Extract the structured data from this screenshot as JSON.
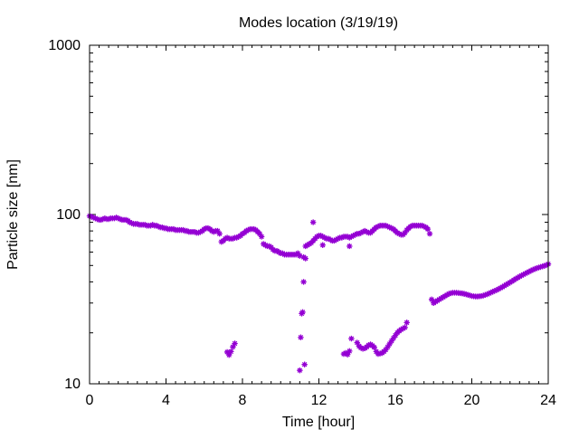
{
  "chart_data": {
    "type": "scatter",
    "title": "Modes location (3/19/19)",
    "xlabel": "Time [hour]",
    "ylabel": "Particle size [nm]",
    "xlim": [
      0,
      24
    ],
    "ylim": [
      10,
      1000
    ],
    "yscale": "log",
    "x_ticks": [
      0,
      4,
      8,
      12,
      16,
      20,
      24
    ],
    "x_tick_labels": [
      "0",
      "4",
      "8",
      "12",
      "16",
      "20",
      "24"
    ],
    "y_ticks": [
      10,
      100,
      1000
    ],
    "y_tick_labels": [
      "10",
      "100",
      "1000"
    ],
    "grid": false,
    "legend": "none",
    "marker": "asterisk",
    "color": "#9400d3",
    "series": [
      {
        "points": [
          [
            0.0,
            98
          ],
          [
            0.1,
            97
          ],
          [
            0.2,
            96
          ],
          [
            0.3,
            95
          ],
          [
            0.4,
            94
          ],
          [
            0.5,
            93
          ],
          [
            0.6,
            93
          ],
          [
            0.7,
            94
          ],
          [
            0.8,
            95
          ],
          [
            0.9,
            94
          ],
          [
            1.0,
            94
          ],
          [
            1.1,
            95
          ],
          [
            1.2,
            95
          ],
          [
            1.3,
            95
          ],
          [
            1.4,
            96
          ],
          [
            1.5,
            95
          ],
          [
            1.6,
            94
          ],
          [
            1.7,
            93
          ],
          [
            1.8,
            93
          ],
          [
            1.9,
            93
          ],
          [
            2.0,
            92
          ],
          [
            2.1,
            90
          ],
          [
            2.2,
            89
          ],
          [
            2.3,
            88
          ],
          [
            2.4,
            88
          ],
          [
            2.5,
            88
          ],
          [
            2.6,
            87
          ],
          [
            2.7,
            87
          ],
          [
            2.8,
            87
          ],
          [
            2.9,
            87
          ],
          [
            3.0,
            86
          ],
          [
            3.1,
            86
          ],
          [
            3.2,
            86
          ],
          [
            3.3,
            87
          ],
          [
            3.4,
            86
          ],
          [
            3.5,
            86
          ],
          [
            3.6,
            85
          ],
          [
            3.7,
            84
          ],
          [
            3.8,
            84
          ],
          [
            3.9,
            83
          ],
          [
            4.0,
            83
          ],
          [
            4.1,
            82
          ],
          [
            4.2,
            82
          ],
          [
            4.3,
            82
          ],
          [
            4.4,
            82
          ],
          [
            4.5,
            81
          ],
          [
            4.6,
            81
          ],
          [
            4.7,
            81
          ],
          [
            4.8,
            81
          ],
          [
            4.9,
            81
          ],
          [
            5.0,
            80
          ],
          [
            5.1,
            80
          ],
          [
            5.2,
            79
          ],
          [
            5.3,
            79
          ],
          [
            5.4,
            79
          ],
          [
            5.5,
            79
          ],
          [
            5.6,
            78
          ],
          [
            5.7,
            78
          ],
          [
            5.8,
            79
          ],
          [
            5.9,
            80
          ],
          [
            6.0,
            82
          ],
          [
            6.1,
            83
          ],
          [
            6.2,
            83
          ],
          [
            6.3,
            82
          ],
          [
            6.4,
            80
          ],
          [
            6.5,
            79
          ],
          [
            6.6,
            80
          ],
          [
            6.7,
            80
          ],
          [
            6.8,
            77
          ],
          [
            6.9,
            69
          ],
          [
            7.0,
            70
          ],
          [
            7.1,
            72
          ],
          [
            7.2,
            73
          ],
          [
            7.3,
            72
          ],
          [
            7.4,
            72
          ],
          [
            7.5,
            72
          ],
          [
            7.6,
            73
          ],
          [
            7.7,
            73
          ],
          [
            7.8,
            74
          ],
          [
            7.9,
            75
          ],
          [
            8.0,
            77
          ],
          [
            8.1,
            78
          ],
          [
            8.2,
            80
          ],
          [
            8.3,
            81
          ],
          [
            8.4,
            82
          ],
          [
            8.5,
            82
          ],
          [
            8.6,
            82
          ],
          [
            8.7,
            81
          ],
          [
            8.8,
            79
          ],
          [
            8.9,
            77
          ],
          [
            9.0,
            74
          ],
          [
            9.1,
            67
          ],
          [
            9.2,
            66
          ],
          [
            9.3,
            65
          ],
          [
            9.4,
            65
          ],
          [
            9.5,
            64
          ],
          [
            9.6,
            62
          ],
          [
            9.7,
            61
          ],
          [
            9.8,
            61
          ],
          [
            9.9,
            60
          ],
          [
            10.0,
            59
          ],
          [
            10.1,
            59
          ],
          [
            10.2,
            58
          ],
          [
            10.3,
            58
          ],
          [
            10.4,
            58
          ],
          [
            10.5,
            58
          ],
          [
            10.6,
            58
          ],
          [
            10.7,
            58
          ],
          [
            10.8,
            58
          ],
          [
            10.9,
            59
          ],
          [
            11.0,
            57
          ],
          [
            11.2,
            56
          ],
          [
            11.3,
            65
          ],
          [
            11.4,
            66
          ],
          [
            11.5,
            67
          ],
          [
            11.6,
            68
          ],
          [
            11.7,
            70
          ],
          [
            11.8,
            72
          ],
          [
            11.9,
            74
          ],
          [
            12.0,
            75
          ],
          [
            12.1,
            75
          ],
          [
            12.2,
            74
          ],
          [
            12.3,
            73
          ],
          [
            12.4,
            72
          ],
          [
            12.5,
            72
          ],
          [
            12.6,
            71
          ],
          [
            12.7,
            70
          ],
          [
            12.8,
            70
          ],
          [
            12.9,
            71
          ],
          [
            13.0,
            72
          ],
          [
            13.1,
            73
          ],
          [
            13.2,
            73
          ],
          [
            13.3,
            74
          ],
          [
            13.4,
            74
          ],
          [
            13.5,
            74
          ],
          [
            13.6,
            73
          ],
          [
            13.7,
            74
          ],
          [
            13.8,
            75
          ],
          [
            13.9,
            76
          ],
          [
            14.0,
            77
          ],
          [
            14.1,
            77
          ],
          [
            14.2,
            78
          ],
          [
            14.3,
            79
          ],
          [
            14.4,
            80
          ],
          [
            14.5,
            79
          ],
          [
            14.6,
            78
          ],
          [
            14.7,
            78
          ],
          [
            14.8,
            80
          ],
          [
            14.9,
            82
          ],
          [
            15.0,
            84
          ],
          [
            15.1,
            85
          ],
          [
            15.2,
            86
          ],
          [
            15.3,
            86
          ],
          [
            15.4,
            86
          ],
          [
            15.5,
            86
          ],
          [
            15.6,
            85
          ],
          [
            15.7,
            84
          ],
          [
            15.8,
            83
          ],
          [
            15.9,
            82
          ],
          [
            16.0,
            80
          ],
          [
            16.1,
            78
          ],
          [
            16.2,
            77
          ],
          [
            16.3,
            76
          ],
          [
            16.4,
            76
          ],
          [
            16.5,
            78
          ],
          [
            16.6,
            81
          ],
          [
            16.7,
            83
          ],
          [
            16.8,
            85
          ],
          [
            16.9,
            86
          ],
          [
            17.0,
            86
          ],
          [
            17.1,
            86
          ],
          [
            17.2,
            86
          ],
          [
            17.3,
            86
          ],
          [
            17.4,
            86
          ],
          [
            17.5,
            85
          ],
          [
            17.6,
            84
          ],
          [
            17.7,
            82
          ],
          [
            17.8,
            77
          ],
          [
            11.7,
            90
          ],
          [
            12.2,
            66
          ],
          [
            13.6,
            65
          ],
          [
            7.2,
            15.4
          ],
          [
            7.3,
            14.8
          ],
          [
            7.4,
            15.5
          ],
          [
            7.5,
            16.5
          ],
          [
            7.6,
            17.3
          ],
          [
            11.0,
            12.0
          ],
          [
            11.05,
            18.8
          ],
          [
            11.1,
            26.0
          ],
          [
            11.15,
            26.5
          ],
          [
            11.2,
            40.0
          ],
          [
            11.25,
            13.0
          ],
          [
            11.3,
            55.0
          ],
          [
            13.3,
            15.0
          ],
          [
            13.4,
            15.2
          ],
          [
            13.5,
            14.9
          ],
          [
            13.6,
            15.6
          ],
          [
            13.7,
            18.5
          ],
          [
            14.0,
            17.5
          ],
          [
            14.1,
            16.7
          ],
          [
            14.2,
            16.3
          ],
          [
            14.3,
            16.1
          ],
          [
            14.4,
            16.2
          ],
          [
            14.5,
            16.5
          ],
          [
            14.6,
            16.9
          ],
          [
            14.7,
            17.1
          ],
          [
            14.8,
            16.8
          ],
          [
            14.9,
            16.4
          ],
          [
            15.0,
            15.5
          ],
          [
            15.1,
            15.0
          ],
          [
            15.2,
            15.1
          ],
          [
            15.3,
            15.2
          ],
          [
            15.4,
            15.5
          ],
          [
            15.5,
            15.9
          ],
          [
            15.6,
            16.5
          ],
          [
            15.7,
            17.2
          ],
          [
            15.8,
            17.9
          ],
          [
            15.9,
            18.6
          ],
          [
            16.0,
            19.3
          ],
          [
            16.1,
            20.0
          ],
          [
            16.2,
            20.5
          ],
          [
            16.3,
            20.9
          ],
          [
            16.4,
            21.2
          ],
          [
            16.5,
            21.5
          ],
          [
            16.6,
            23.0
          ],
          [
            17.9,
            31.5
          ],
          [
            18.0,
            30.0
          ],
          [
            18.1,
            30.5
          ],
          [
            18.2,
            31.0
          ],
          [
            18.3,
            31.5
          ],
          [
            18.4,
            32.0
          ],
          [
            18.5,
            32.5
          ],
          [
            18.6,
            33.0
          ],
          [
            18.7,
            33.5
          ],
          [
            18.8,
            34.0
          ],
          [
            18.9,
            34.3
          ],
          [
            19.0,
            34.5
          ],
          [
            19.1,
            34.5
          ],
          [
            19.2,
            34.5
          ],
          [
            19.3,
            34.4
          ],
          [
            19.4,
            34.3
          ],
          [
            19.5,
            34.2
          ],
          [
            19.6,
            34.0
          ],
          [
            19.7,
            33.8
          ],
          [
            19.8,
            33.5
          ],
          [
            19.9,
            33.3
          ],
          [
            20.0,
            33.0
          ],
          [
            20.1,
            32.9
          ],
          [
            20.2,
            32.8
          ],
          [
            20.3,
            32.8
          ],
          [
            20.4,
            32.9
          ],
          [
            20.5,
            33.0
          ],
          [
            20.6,
            33.2
          ],
          [
            20.7,
            33.5
          ],
          [
            20.8,
            33.8
          ],
          [
            20.9,
            34.2
          ],
          [
            21.0,
            34.6
          ],
          [
            21.1,
            35.0
          ],
          [
            21.2,
            35.4
          ],
          [
            21.3,
            35.8
          ],
          [
            21.4,
            36.3
          ],
          [
            21.5,
            36.8
          ],
          [
            21.6,
            37.3
          ],
          [
            21.7,
            37.9
          ],
          [
            21.8,
            38.5
          ],
          [
            21.9,
            39.1
          ],
          [
            22.0,
            39.7
          ],
          [
            22.1,
            40.3
          ],
          [
            22.2,
            41.0
          ],
          [
            22.3,
            41.7
          ],
          [
            22.4,
            42.3
          ],
          [
            22.5,
            43.0
          ],
          [
            22.6,
            43.6
          ],
          [
            22.7,
            44.2
          ],
          [
            22.8,
            44.8
          ],
          [
            22.9,
            45.4
          ],
          [
            23.0,
            46.0
          ],
          [
            23.1,
            46.6
          ],
          [
            23.2,
            47.2
          ],
          [
            23.3,
            47.7
          ],
          [
            23.4,
            48.2
          ],
          [
            23.5,
            48.6
          ],
          [
            23.6,
            49.0
          ],
          [
            23.7,
            49.4
          ],
          [
            23.8,
            49.8
          ],
          [
            23.9,
            50.2
          ],
          [
            24.0,
            51.0
          ]
        ]
      }
    ]
  }
}
